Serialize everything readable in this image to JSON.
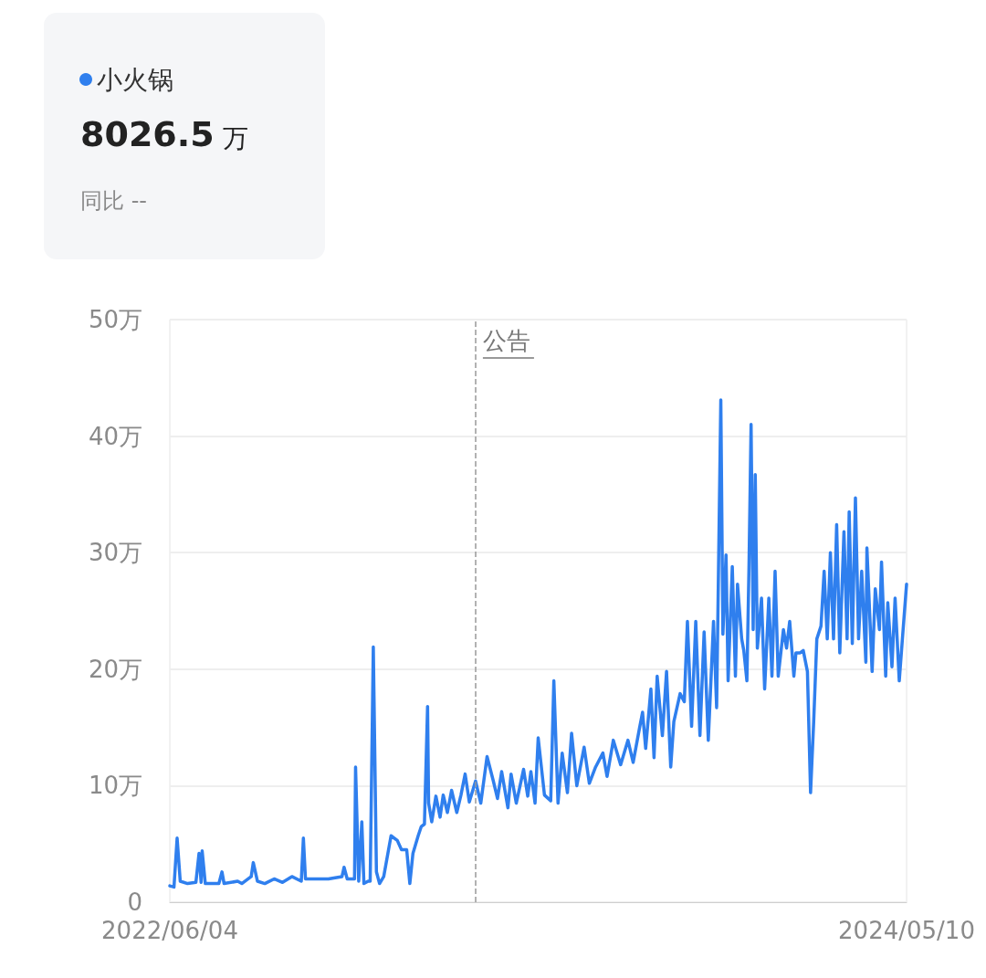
{
  "chart_data": {
    "type": "line",
    "annotations": [
      "8026.5 万",
      "同比 --"
    ],
    "x": [
      "2022-06-04",
      "2022-06-08",
      "2022-06-11",
      "2022-06-14",
      "2022-06-21",
      "2022-06-29",
      "2022-07-02",
      "2022-07-04",
      "2022-07-05",
      "2022-07-08",
      "2022-07-21",
      "2022-07-24",
      "2022-07-26",
      "2022-08-08",
      "2022-08-12",
      "2022-08-21",
      "2022-08-23",
      "2022-08-27",
      "2022-09-03",
      "2022-09-12",
      "2022-09-20",
      "2022-09-29",
      "2022-10-08",
      "2022-10-10",
      "2022-10-12",
      "2022-11-03",
      "2022-11-16",
      "2022-11-18",
      "2022-11-21",
      "2022-11-28",
      "2022-11-29",
      "2022-12-02",
      "2022-12-05",
      "2022-12-07",
      "2022-12-11",
      "2022-12-13",
      "2022-12-16",
      "2022-12-19",
      "2022-12-22",
      "2022-12-26",
      "2023-01-02",
      "2023-01-08",
      "2023-01-12",
      "2023-01-17",
      "2023-01-20",
      "2023-01-23",
      "2023-01-28",
      "2023-01-31",
      "2023-02-03",
      "2023-02-06",
      "2023-02-07",
      "2023-02-10",
      "2023-02-14",
      "2023-02-18",
      "2023-02-21",
      "2023-02-25",
      "2023-03-01",
      "2023-03-06",
      "2023-03-10",
      "2023-03-14",
      "2023-03-18",
      "2023-03-24",
      "2023-03-29",
      "2023-04-04",
      "2023-04-10",
      "2023-04-14",
      "2023-04-18",
      "2023-04-24",
      "2023-04-27",
      "2023-05-02",
      "2023-05-09",
      "2023-05-13",
      "2023-05-16",
      "2023-05-20",
      "2023-05-23",
      "2023-05-29",
      "2023-06-04",
      "2023-06-07",
      "2023-06-11",
      "2023-06-15",
      "2023-06-20",
      "2023-06-24",
      "2023-06-29",
      "2023-07-06",
      "2023-07-11",
      "2023-07-17",
      "2023-07-24",
      "2023-07-28",
      "2023-08-03",
      "2023-08-10",
      "2023-08-17",
      "2023-08-22",
      "2023-08-28",
      "2023-08-31",
      "2023-09-03",
      "2023-09-08",
      "2023-09-11",
      "2023-09-14",
      "2023-09-19",
      "2023-09-23",
      "2023-09-27",
      "2023-09-30",
      "2023-10-06",
      "2023-10-10",
      "2023-10-13",
      "2023-10-17",
      "2023-10-21",
      "2023-10-25",
      "2023-10-29",
      "2023-11-02",
      "2023-11-04",
      "2023-11-07",
      "2023-11-10",
      "2023-11-14",
      "2023-11-16",
      "2023-11-19",
      "2023-11-21",
      "2023-11-25",
      "2023-11-28",
      "2023-11-30",
      "2023-12-04",
      "2023-12-06",
      "2023-12-09",
      "2023-12-11",
      "2023-12-13",
      "2023-12-15",
      "2023-12-17",
      "2023-12-19",
      "2023-12-23",
      "2023-12-26",
      "2023-12-30",
      "2024-01-02",
      "2024-01-05",
      "2024-01-08",
      "2024-01-13",
      "2024-01-16",
      "2024-01-19",
      "2024-01-23",
      "2024-01-25",
      "2024-01-29",
      "2024-02-01",
      "2024-02-05",
      "2024-02-08",
      "2024-02-11",
      "2024-02-14",
      "2024-02-18",
      "2024-02-21",
      "2024-02-24",
      "2024-02-27",
      "2024-03-01",
      "2024-03-04",
      "2024-03-07",
      "2024-03-11",
      "2024-03-14",
      "2024-03-16",
      "2024-03-19",
      "2024-03-22",
      "2024-03-25",
      "2024-03-28",
      "2024-04-01",
      "2024-04-02",
      "2024-04-07",
      "2024-04-10",
      "2024-04-14",
      "2024-04-16",
      "2024-04-20",
      "2024-04-22",
      "2024-04-26",
      "2024-04-29",
      "2024-05-03",
      "2024-05-06",
      "2024-05-10"
    ],
    "series": [
      {
        "name": "小火锅",
        "color": "#2f7fee",
        "values": [
          1.4,
          1.3,
          5.5,
          1.8,
          1.6,
          1.7,
          4.2,
          1.7,
          4.4,
          1.6,
          1.6,
          2.6,
          1.6,
          1.8,
          1.6,
          2.2,
          3.4,
          1.8,
          1.6,
          2.0,
          1.7,
          2.2,
          1.8,
          5.5,
          2.0,
          2.0,
          2.2,
          3.0,
          2.0,
          2.0,
          11.6,
          1.8,
          6.9,
          1.6,
          1.8,
          1.8,
          21.9,
          2.6,
          1.6,
          2.2,
          5.7,
          5.3,
          4.5,
          4.5,
          1.6,
          4.2,
          5.7,
          6.5,
          6.7,
          16.8,
          8.5,
          6.9,
          9.1,
          7.3,
          9.2,
          7.7,
          9.6,
          7.7,
          9.2,
          11.0,
          8.6,
          10.4,
          8.5,
          12.5,
          10.4,
          8.9,
          11.2,
          8.1,
          11.0,
          8.5,
          11.4,
          9.1,
          11.2,
          8.5,
          14.1,
          9.2,
          8.7,
          19.0,
          8.5,
          12.8,
          9.4,
          14.5,
          10.0,
          13.3,
          10.2,
          11.6,
          12.8,
          10.8,
          13.9,
          11.8,
          13.9,
          12.0,
          14.9,
          16.3,
          13.2,
          18.3,
          12.4,
          19.4,
          14.3,
          19.8,
          11.6,
          15.5,
          17.9,
          17.2,
          24.1,
          15.1,
          24.1,
          14.3,
          23.2,
          13.9,
          17.9,
          24.1,
          16.7,
          43.1,
          23.0,
          29.8,
          19.0,
          28.8,
          19.4,
          27.3,
          22.6,
          21.6,
          19.0,
          28.8,
          41.0,
          23.4,
          36.7,
          21.8,
          26.1,
          18.3,
          26.1,
          19.4,
          28.4,
          19.4,
          23.4,
          21.8,
          24.1,
          19.4,
          21.4,
          21.4,
          21.6,
          19.8,
          9.4,
          15.5,
          22.6,
          23.7,
          28.4,
          22.6,
          30.0,
          22.6,
          32.4,
          21.4,
          31.8,
          22.6,
          33.5,
          22.2,
          34.7,
          22.6,
          28.4,
          20.6,
          30.4,
          19.8,
          26.9,
          23.4,
          29.2,
          19.4,
          25.7,
          20.2,
          26.1,
          19.0,
          22.6,
          27.3
        ]
      }
    ],
    "xlim": [
      "2022-06-04",
      "2024-05-10"
    ],
    "xticks": [
      {
        "value": "2022-06-04",
        "label": "2022/06/04"
      },
      {
        "value": "2024-05-10",
        "label": "2024/05/10"
      }
    ],
    "ylim": [
      0,
      50
    ],
    "yticks": [
      0,
      {
        "value": 10,
        "label": "10万"
      },
      {
        "value": 20,
        "label": "20万"
      },
      {
        "value": 30,
        "label": "30万"
      },
      {
        "value": 40,
        "label": "40万"
      },
      {
        "value": 50,
        "label": "50万"
      }
    ],
    "ref_lines": [
      {
        "axis": "x",
        "value": "2023-03-24",
        "label": "公告",
        "color": "#999999",
        "line_style": "dashed"
      }
    ],
    "grid": "y",
    "legend": "top left",
    "marker": "none",
    "line_style": "solid"
  }
}
